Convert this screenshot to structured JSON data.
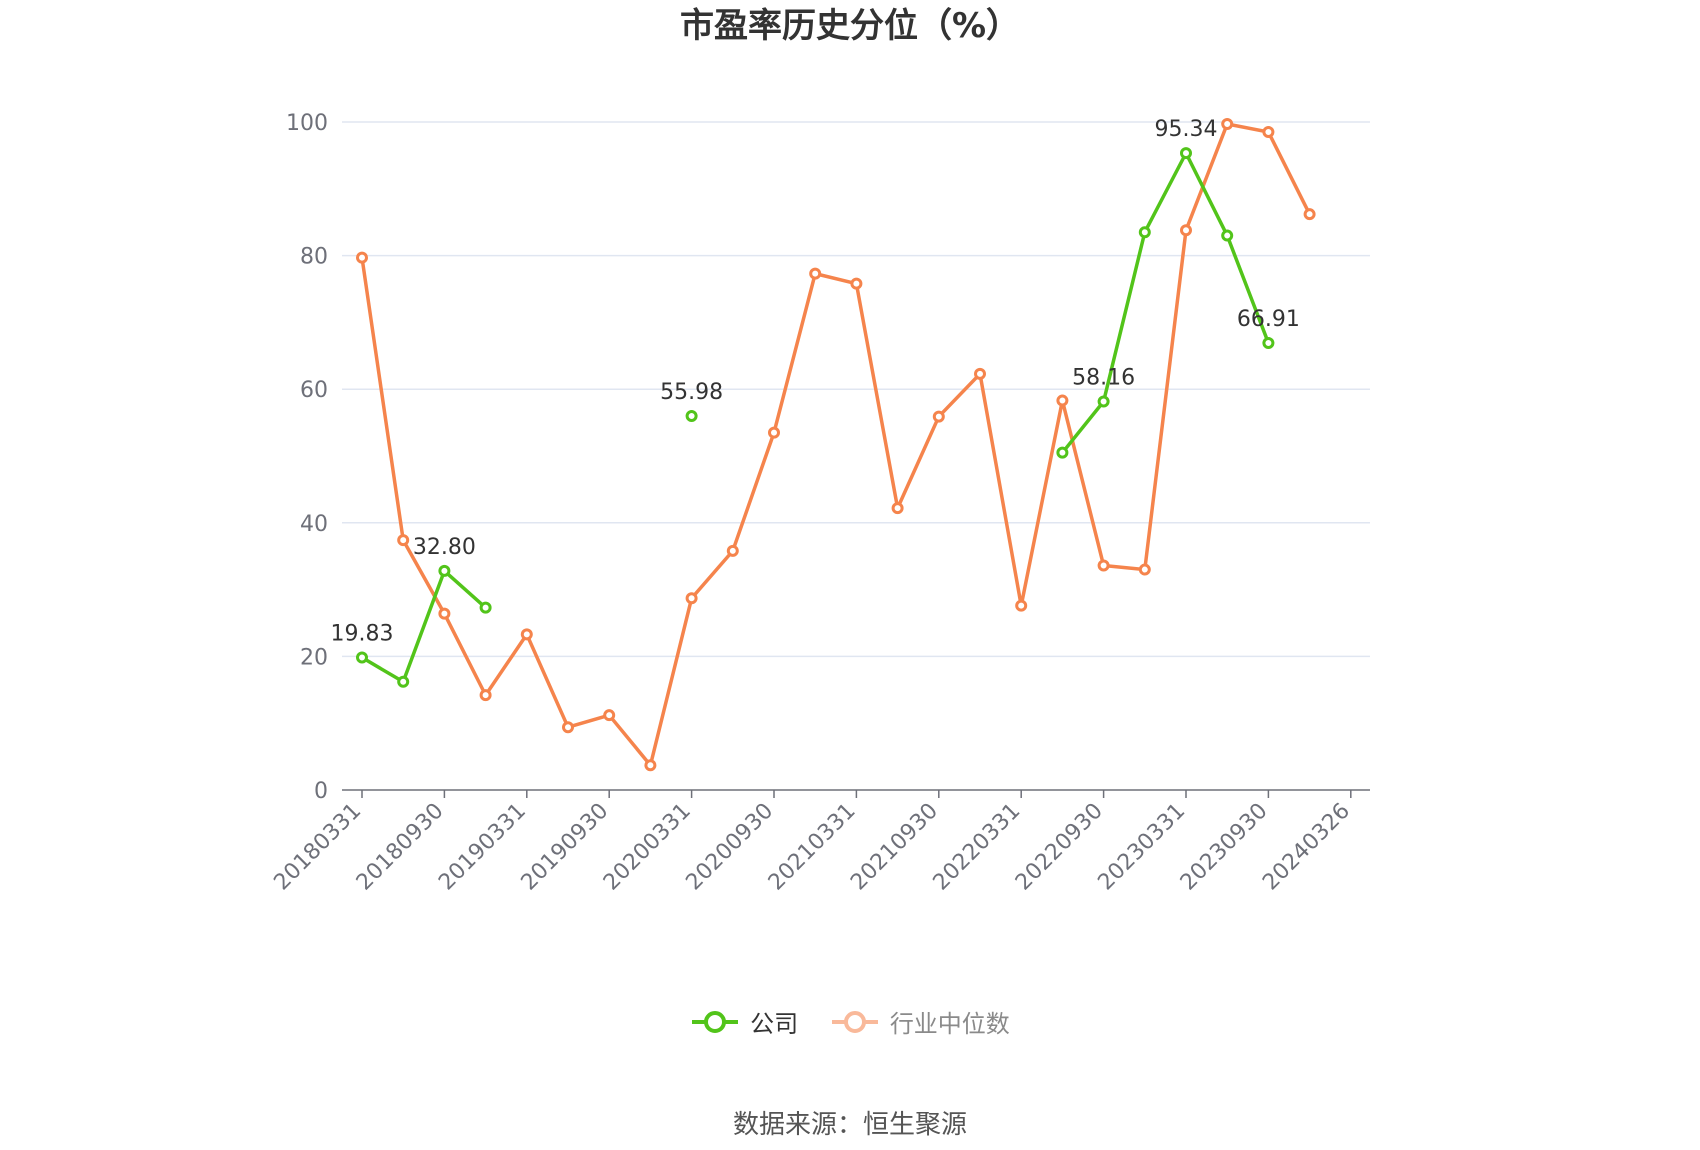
{
  "chart_data": {
    "type": "line",
    "title": "市盈率历史分位（%）",
    "ylim": [
      0,
      100
    ],
    "y_ticks": [
      0,
      20,
      40,
      60,
      80,
      100
    ],
    "x_tick_labels": [
      "20180331",
      "20180930",
      "20190331",
      "20190930",
      "20200331",
      "20200930",
      "20210331",
      "20210930",
      "20220331",
      "20220930",
      "20230331",
      "20230930",
      "20240326"
    ],
    "grid": true,
    "legend_position": "bottom",
    "series": [
      {
        "name": "公司",
        "color": "#52c41a",
        "values": [
          19.83,
          16.2,
          32.8,
          27.3,
          null,
          null,
          null,
          null,
          55.98,
          null,
          null,
          null,
          null,
          null,
          null,
          null,
          null,
          50.5,
          58.16,
          83.5,
          95.34,
          83.0,
          66.91,
          null
        ],
        "labels": {
          "0": "19.83",
          "2": "32.80",
          "8": "55.98",
          "18": "58.16",
          "20": "95.34",
          "22": "66.91"
        }
      },
      {
        "name": "行业中位数",
        "color": "#f5844c",
        "values": [
          79.7,
          37.4,
          26.4,
          14.2,
          23.3,
          9.4,
          11.2,
          3.7,
          28.7,
          35.8,
          53.5,
          77.3,
          75.8,
          42.2,
          55.9,
          62.3,
          27.6,
          58.3,
          33.6,
          33.0,
          83.8,
          99.7,
          98.5,
          86.2
        ]
      }
    ]
  },
  "legend": {
    "company": "公司",
    "industry": "行业中位数"
  },
  "source": "数据来源：恒生聚源"
}
